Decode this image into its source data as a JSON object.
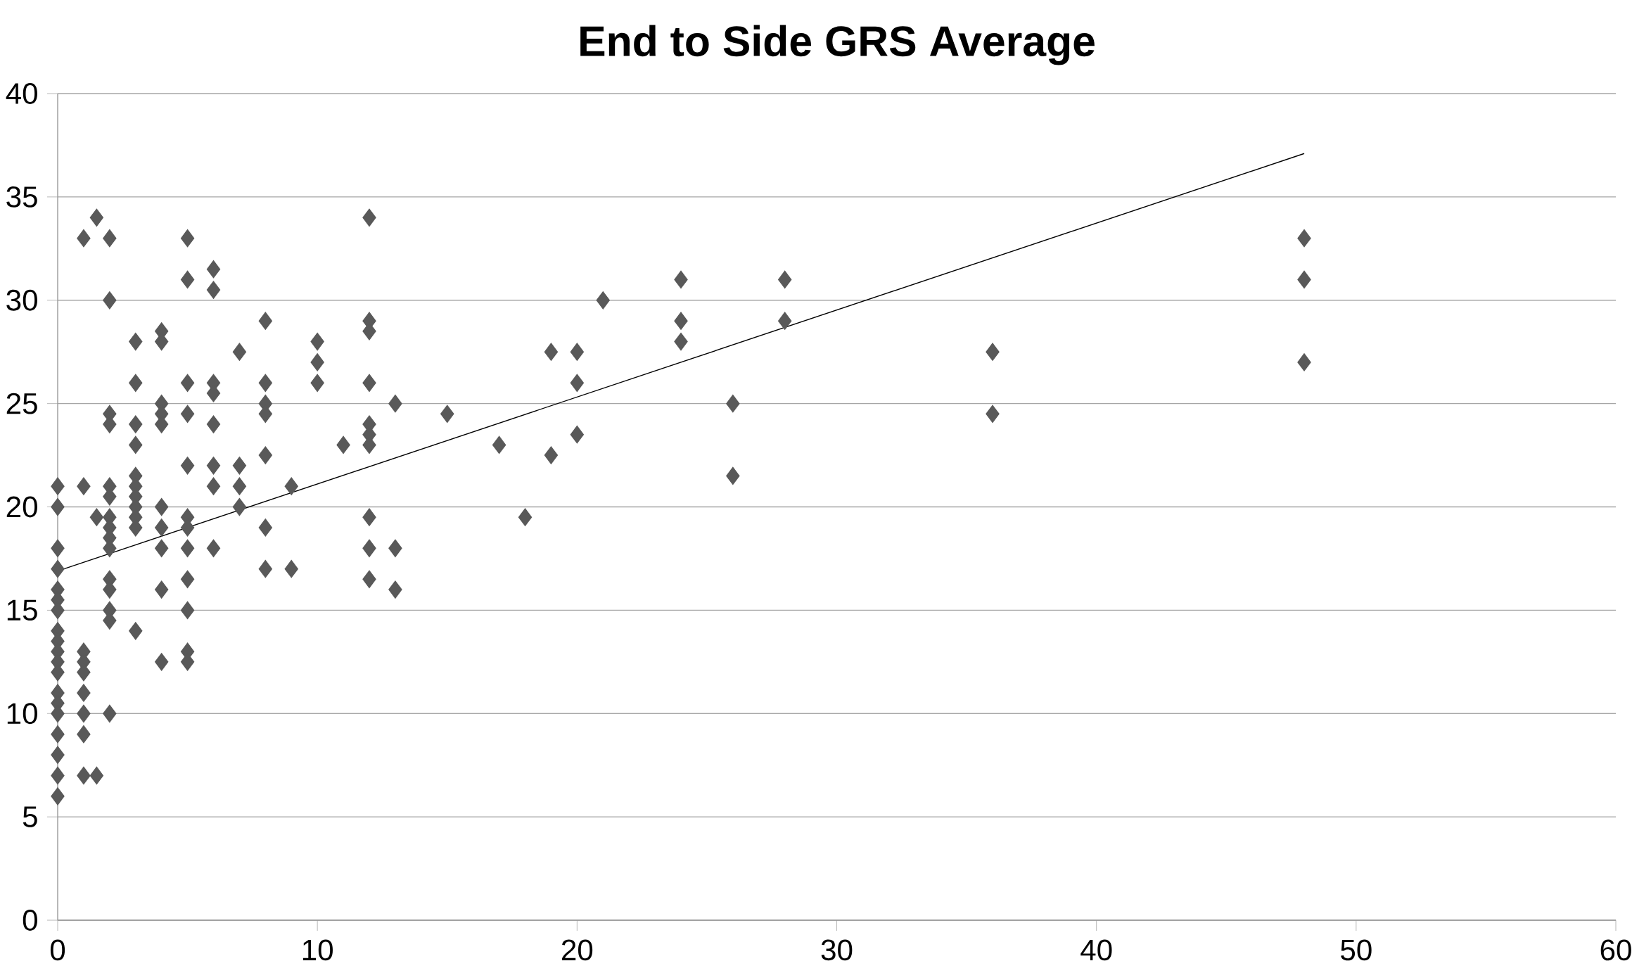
{
  "chart_data": {
    "type": "scatter",
    "title": "End to Side GRS Average",
    "xlim": [
      0,
      60
    ],
    "xticks": [
      0,
      10,
      20,
      30,
      40,
      50,
      60
    ],
    "ylim": [
      0,
      40
    ],
    "yticks": [
      0,
      5,
      10,
      15,
      20,
      25,
      30,
      35,
      40
    ],
    "grid": "y",
    "series": [
      {
        "type": "scatter",
        "marker": "diamond",
        "color": "#595959",
        "x": [
          0,
          0,
          0,
          0,
          0,
          0,
          0,
          0,
          0,
          0,
          0,
          0,
          0,
          0,
          0,
          0,
          0,
          0,
          0,
          1,
          1,
          1,
          1,
          1,
          1,
          1,
          1,
          1,
          1.5,
          1.5,
          1.5,
          2,
          2,
          2,
          2,
          2,
          2,
          2,
          2,
          2,
          2,
          2,
          2,
          2,
          2,
          2,
          3,
          3,
          3,
          3,
          3,
          3,
          3,
          3,
          3,
          3,
          3,
          4,
          4,
          4,
          4,
          4,
          4,
          4,
          4,
          4,
          4,
          5,
          5,
          5,
          5,
          5,
          5,
          5,
          5,
          5,
          5,
          5,
          5,
          6,
          6,
          6,
          6,
          6,
          6,
          6,
          6,
          7,
          7,
          7,
          7,
          8,
          8,
          8,
          8,
          8,
          8,
          8,
          9,
          9,
          10,
          10,
          10,
          11,
          12,
          12,
          12,
          12,
          12,
          12,
          12,
          12,
          12,
          12,
          13,
          13,
          13,
          15,
          17,
          18,
          19,
          19,
          20,
          20,
          20,
          21,
          24,
          24,
          24,
          26,
          26,
          28,
          28,
          36,
          36,
          48,
          48,
          48
        ],
        "values": [
          21,
          20,
          18,
          17,
          16,
          15.5,
          15,
          14,
          13.5,
          13,
          12.5,
          12,
          11,
          10.5,
          10,
          9,
          8,
          7,
          6,
          33,
          21,
          13,
          12.5,
          12,
          11,
          10,
          9,
          7,
          34,
          19.5,
          7,
          33,
          30,
          24.5,
          24,
          21,
          20.5,
          19.5,
          19,
          18.5,
          18,
          16.5,
          16,
          15,
          14.5,
          10,
          28,
          26,
          24,
          23,
          21.5,
          21,
          20.5,
          20,
          19.5,
          19,
          14,
          28.5,
          28,
          25,
          24.5,
          24,
          20,
          19,
          18,
          16,
          12.5,
          33,
          31,
          26,
          24.5,
          22,
          19.5,
          19,
          18,
          16.5,
          15,
          13,
          12.5,
          31.5,
          30.5,
          26,
          25.5,
          24,
          22,
          21,
          18,
          27.5,
          22,
          21,
          20,
          29,
          26,
          25,
          24.5,
          22.5,
          19,
          17,
          21,
          17,
          28,
          27,
          26,
          23,
          34,
          29,
          28.5,
          26,
          24,
          23.5,
          23,
          19.5,
          18,
          16.5,
          25,
          18,
          16,
          24.5,
          23,
          19.5,
          27.5,
          22.5,
          27.5,
          26,
          23.5,
          30,
          31,
          29,
          28,
          25,
          21.5,
          31,
          29,
          27.5,
          24.5,
          33,
          31,
          27
        ]
      },
      {
        "type": "line",
        "marker": "none",
        "line_style": "solid",
        "color": "#000000",
        "x": [
          0,
          48
        ],
        "values": [
          16.9,
          37.1
        ]
      }
    ]
  }
}
